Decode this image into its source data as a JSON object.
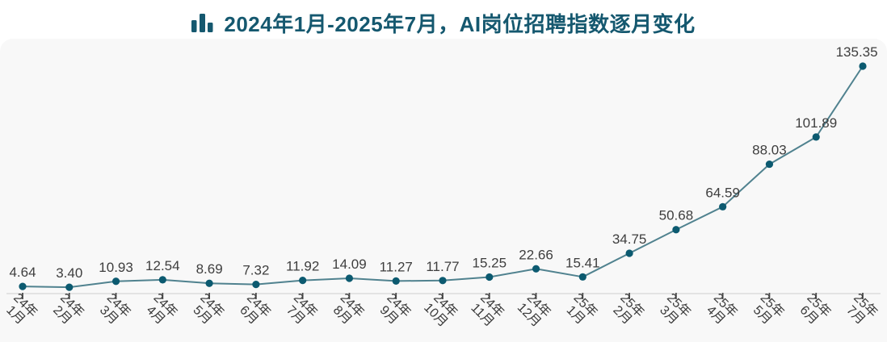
{
  "chart_data": {
    "type": "line",
    "title": "2024年1月-2025年7月，AI岗位招聘指数逐月变化",
    "title_icon": "bar-chart-icon",
    "categories": [
      "24年1月",
      "24年2月",
      "24年3月",
      "24年4月",
      "24年5月",
      "24年6月",
      "24年7月",
      "24年8月",
      "24年9月",
      "24年10月",
      "24年11月",
      "24年12月",
      "25年1月",
      "25年2月",
      "25年3月",
      "25年4月",
      "25年5月",
      "25年6月",
      "25年7月"
    ],
    "values": [
      4.64,
      3.4,
      10.93,
      12.54,
      8.69,
      7.32,
      11.92,
      14.09,
      11.27,
      11.77,
      15.25,
      22.66,
      15.41,
      34.75,
      50.68,
      64.59,
      88.03,
      101.89,
      135.35
    ],
    "value_labels": [
      "4.64",
      "3.40",
      "10.93",
      "12.54",
      "8.69",
      "7.32",
      "11.92",
      "14.09",
      "11.27",
      "11.77",
      "15.25",
      "22.66",
      "15.41",
      "34.75",
      "50.68",
      "64.59",
      "88.03",
      "101.89",
      "135.35"
    ],
    "xlabel": "",
    "ylabel": "",
    "ylim": [
      0,
      140
    ],
    "grid": false,
    "legend": "none",
    "line_style": "straight",
    "colors": {
      "title": "#15586F",
      "line": "#50828F",
      "point": "#0C5A70",
      "value_label": "#3E3E3E",
      "axis_label": "#3A3A3A",
      "axis_line": "#E3E3E3",
      "tick": "#4D4D4D",
      "card_background": "#F8F8F8",
      "page_background": "#FFFFFF"
    }
  }
}
